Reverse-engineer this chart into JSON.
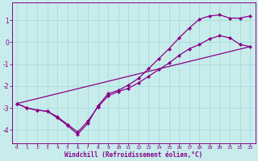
{
  "xlabel": "Windchill (Refroidissement éolien,°C)",
  "bg_color": "#c8ecec",
  "line_color": "#880088",
  "grid_color": "#aadddd",
  "xlim": [
    -0.5,
    23.5
  ],
  "ylim": [
    -4.6,
    1.8
  ],
  "yticks": [
    -4,
    -3,
    -2,
    -1,
    0,
    1
  ],
  "xticks": [
    0,
    1,
    2,
    3,
    4,
    5,
    6,
    7,
    8,
    9,
    10,
    11,
    12,
    13,
    14,
    15,
    16,
    17,
    18,
    19,
    20,
    21,
    22,
    23
  ],
  "line1_x": [
    0,
    1,
    2,
    3,
    4,
    5,
    6,
    7,
    8,
    9,
    10,
    11,
    12,
    13,
    14,
    15,
    16,
    17,
    18,
    19,
    20,
    21,
    22,
    23
  ],
  "line1_y": [
    -2.8,
    -3.0,
    -3.1,
    -3.15,
    -3.4,
    -3.75,
    -4.1,
    -3.6,
    -2.95,
    -2.45,
    -2.25,
    -2.1,
    -1.85,
    -1.55,
    -1.25,
    -0.95,
    -0.6,
    -0.3,
    -0.1,
    0.15,
    0.3,
    0.2,
    -0.1,
    -0.2
  ],
  "line2_x": [
    0,
    1,
    2,
    3,
    4,
    5,
    6,
    7,
    8,
    9,
    10,
    11,
    12,
    13,
    14,
    15,
    16,
    17,
    18,
    19,
    20,
    21,
    22,
    23
  ],
  "line2_y": [
    -2.8,
    -3.0,
    -3.1,
    -3.15,
    -3.45,
    -3.8,
    -4.2,
    -3.7,
    -2.9,
    -2.35,
    -2.2,
    -1.95,
    -1.65,
    -1.2,
    -0.75,
    -0.3,
    0.2,
    0.65,
    1.05,
    1.2,
    1.25,
    1.1,
    1.1,
    1.2
  ],
  "line3_x": [
    0,
    23
  ],
  "line3_y": [
    -2.8,
    -0.2
  ]
}
